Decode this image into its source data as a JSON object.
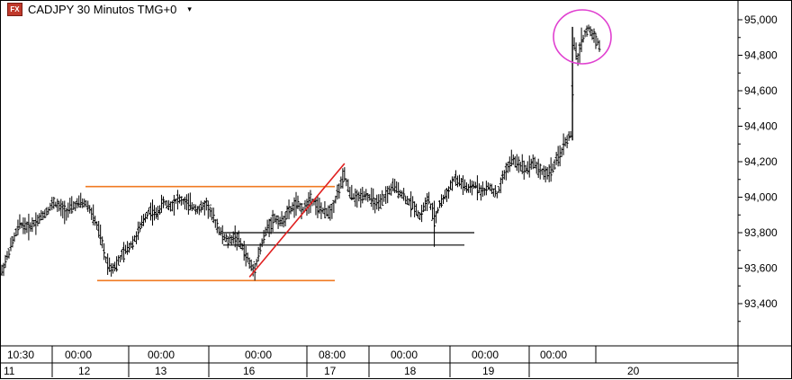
{
  "header": {
    "icon_text": "FX",
    "title": "CADJPY 30 Minutos TMG+0",
    "dropdown_icon": "chevron-down-icon"
  },
  "colors": {
    "candles": "#000000",
    "range_lines": "#f07a22",
    "trend_line": "#e02020",
    "support_lines": "#000000",
    "highlight_circle": "#e040d0",
    "grid": "#000000"
  },
  "chart_data": {
    "type": "candlestick",
    "symbol": "CADJPY",
    "timeframe": "30 Minutos",
    "ylim": [
      93.2,
      95.09
    ],
    "y_ticks": [
      "95,000",
      "94,800",
      "94,600",
      "94,400",
      "94,200",
      "94,000",
      "93,800",
      "93,600",
      "93,400"
    ],
    "y_tick_values": [
      95.0,
      94.8,
      94.6,
      94.4,
      94.2,
      94.0,
      93.8,
      93.6,
      93.4
    ],
    "x_time_labels": [
      "10:30",
      "00:00",
      "00:00",
      "00:00",
      "08:00",
      "00:00",
      "00:00",
      "00:00"
    ],
    "x_day_labels": [
      "11",
      "12",
      "13",
      "16",
      "17",
      "18",
      "19",
      "20"
    ],
    "price_path": [
      [
        0,
        93.58
      ],
      [
        10,
        93.72
      ],
      [
        20,
        93.85
      ],
      [
        30,
        93.83
      ],
      [
        40,
        93.87
      ],
      [
        50,
        93.92
      ],
      [
        58,
        93.97
      ],
      [
        65,
        93.94
      ],
      [
        72,
        93.92
      ],
      [
        80,
        93.95
      ],
      [
        88,
        93.97
      ],
      [
        95,
        93.96
      ],
      [
        103,
        93.88
      ],
      [
        110,
        93.78
      ],
      [
        116,
        93.65
      ],
      [
        122,
        93.6
      ],
      [
        128,
        93.62
      ],
      [
        135,
        93.68
      ],
      [
        142,
        93.72
      ],
      [
        150,
        93.78
      ],
      [
        158,
        93.87
      ],
      [
        165,
        93.93
      ],
      [
        172,
        93.9
      ],
      [
        180,
        93.97
      ],
      [
        188,
        93.95
      ],
      [
        196,
        93.99
      ],
      [
        204,
        93.97
      ],
      [
        212,
        93.95
      ],
      [
        220,
        93.93
      ],
      [
        228,
        93.96
      ],
      [
        236,
        93.88
      ],
      [
        244,
        93.8
      ],
      [
        252,
        93.75
      ],
      [
        260,
        93.78
      ],
      [
        268,
        93.72
      ],
      [
        276,
        93.63
      ],
      [
        281,
        93.58
      ],
      [
        285,
        93.66
      ],
      [
        290,
        93.74
      ],
      [
        296,
        93.83
      ],
      [
        304,
        93.88
      ],
      [
        312,
        93.86
      ],
      [
        320,
        93.92
      ],
      [
        328,
        93.96
      ],
      [
        336,
        93.93
      ],
      [
        344,
        93.99
      ],
      [
        352,
        93.95
      ],
      [
        360,
        93.91
      ],
      [
        368,
        93.93
      ],
      [
        376,
        94.05
      ],
      [
        382,
        94.12
      ],
      [
        388,
        94.02
      ],
      [
        396,
        93.99
      ],
      [
        404,
        94.02
      ],
      [
        412,
        93.99
      ],
      [
        420,
        93.95
      ],
      [
        428,
        94.01
      ],
      [
        436,
        94.06
      ],
      [
        444,
        94.03
      ],
      [
        452,
        93.98
      ],
      [
        460,
        93.95
      ],
      [
        466,
        93.89
      ],
      [
        470,
        93.94
      ],
      [
        476,
        93.99
      ],
      [
        482,
        93.86
      ],
      [
        488,
        93.96
      ],
      [
        496,
        94.02
      ],
      [
        504,
        94.1
      ],
      [
        512,
        94.08
      ],
      [
        520,
        94.04
      ],
      [
        528,
        94.07
      ],
      [
        536,
        94.03
      ],
      [
        544,
        94.06
      ],
      [
        552,
        94.01
      ],
      [
        560,
        94.13
      ],
      [
        568,
        94.21
      ],
      [
        576,
        94.19
      ],
      [
        584,
        94.16
      ],
      [
        592,
        94.2
      ],
      [
        600,
        94.15
      ],
      [
        608,
        94.13
      ],
      [
        616,
        94.18
      ],
      [
        622,
        94.24
      ],
      [
        628,
        94.31
      ],
      [
        634,
        94.35
      ],
      [
        638,
        94.85
      ],
      [
        642,
        94.78
      ],
      [
        646,
        94.88
      ],
      [
        650,
        94.92
      ],
      [
        654,
        94.95
      ],
      [
        658,
        94.92
      ],
      [
        662,
        94.9
      ],
      [
        666,
        94.85
      ]
    ],
    "annotations": {
      "range_top": 94.06,
      "range_bottom": 93.53,
      "trend_line": [
        [
          276,
          93.55
        ],
        [
          382,
          94.19
        ]
      ],
      "support_1": 93.8,
      "support_2": 93.73
    }
  }
}
